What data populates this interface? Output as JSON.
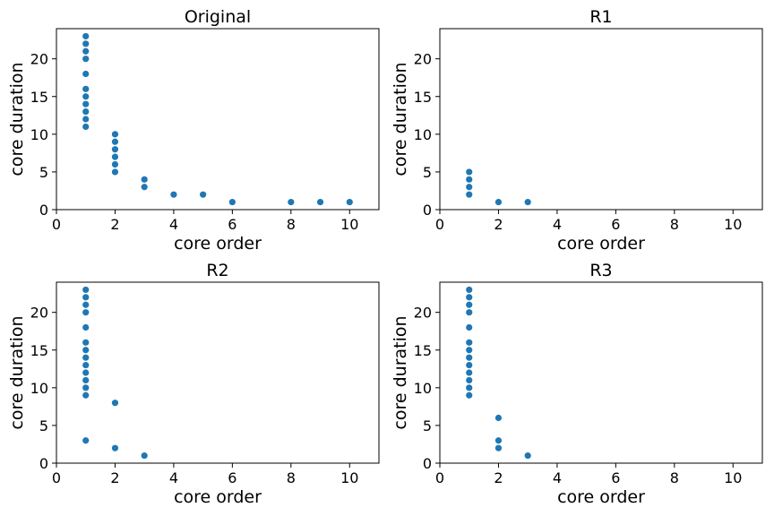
{
  "figure": {
    "colors": {
      "marker": "#1f77b4",
      "axes": "#000000",
      "background": "#ffffff"
    }
  },
  "chart_data": [
    {
      "type": "scatter",
      "title": "Original",
      "xlabel": "core order",
      "ylabel": "core duration",
      "xlim": [
        0,
        11
      ],
      "ylim": [
        0,
        24
      ],
      "xticks": [
        0,
        2,
        4,
        6,
        8,
        10
      ],
      "yticks": [
        0,
        5,
        10,
        15,
        20
      ],
      "grid": false,
      "points": [
        [
          1,
          11
        ],
        [
          1,
          12
        ],
        [
          1,
          13
        ],
        [
          1,
          14
        ],
        [
          1,
          15
        ],
        [
          1,
          16
        ],
        [
          1,
          18
        ],
        [
          1,
          20
        ],
        [
          1,
          21
        ],
        [
          1,
          22
        ],
        [
          1,
          23
        ],
        [
          2,
          5
        ],
        [
          2,
          6
        ],
        [
          2,
          7
        ],
        [
          2,
          8
        ],
        [
          2,
          9
        ],
        [
          2,
          10
        ],
        [
          3,
          3
        ],
        [
          3,
          4
        ],
        [
          4,
          2
        ],
        [
          5,
          2
        ],
        [
          6,
          1
        ],
        [
          8,
          1
        ],
        [
          9,
          1
        ],
        [
          10,
          1
        ]
      ]
    },
    {
      "type": "scatter",
      "title": "R1",
      "xlabel": "core order",
      "ylabel": "core duration",
      "xlim": [
        0,
        11
      ],
      "ylim": [
        0,
        24
      ],
      "xticks": [
        0,
        2,
        4,
        6,
        8,
        10
      ],
      "yticks": [
        0,
        5,
        10,
        15,
        20
      ],
      "grid": false,
      "points": [
        [
          1,
          2
        ],
        [
          1,
          3
        ],
        [
          1,
          4
        ],
        [
          1,
          5
        ],
        [
          2,
          1
        ],
        [
          3,
          1
        ]
      ]
    },
    {
      "type": "scatter",
      "title": "R2",
      "xlabel": "core order",
      "ylabel": "core duration",
      "xlim": [
        0,
        11
      ],
      "ylim": [
        0,
        24
      ],
      "xticks": [
        0,
        2,
        4,
        6,
        8,
        10
      ],
      "yticks": [
        0,
        5,
        10,
        15,
        20
      ],
      "grid": false,
      "points": [
        [
          1,
          3
        ],
        [
          1,
          9
        ],
        [
          1,
          10
        ],
        [
          1,
          11
        ],
        [
          1,
          12
        ],
        [
          1,
          13
        ],
        [
          1,
          14
        ],
        [
          1,
          15
        ],
        [
          1,
          16
        ],
        [
          1,
          18
        ],
        [
          1,
          20
        ],
        [
          1,
          21
        ],
        [
          1,
          22
        ],
        [
          1,
          23
        ],
        [
          2,
          2
        ],
        [
          2,
          8
        ],
        [
          3,
          1
        ]
      ]
    },
    {
      "type": "scatter",
      "title": "R3",
      "xlabel": "core order",
      "ylabel": "core duration",
      "xlim": [
        0,
        11
      ],
      "ylim": [
        0,
        24
      ],
      "xticks": [
        0,
        2,
        4,
        6,
        8,
        10
      ],
      "yticks": [
        0,
        5,
        10,
        15,
        20
      ],
      "grid": false,
      "points": [
        [
          1,
          9
        ],
        [
          1,
          10
        ],
        [
          1,
          11
        ],
        [
          1,
          12
        ],
        [
          1,
          13
        ],
        [
          1,
          14
        ],
        [
          1,
          15
        ],
        [
          1,
          16
        ],
        [
          1,
          18
        ],
        [
          1,
          20
        ],
        [
          1,
          21
        ],
        [
          1,
          22
        ],
        [
          1,
          23
        ],
        [
          2,
          2
        ],
        [
          2,
          3
        ],
        [
          2,
          6
        ],
        [
          3,
          1
        ]
      ]
    }
  ]
}
